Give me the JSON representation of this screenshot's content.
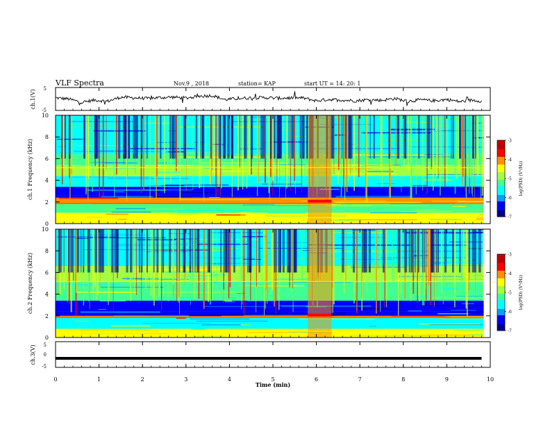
{
  "header": {
    "title": "VLF Spectra",
    "date": "Nov.9 , 2018",
    "station": "station= KAP",
    "start_ut": "start UT = 14: 20: 1"
  },
  "colorbar": {
    "label": "log(PSD) (V²/Hz)",
    "ticks": [
      "-3",
      "-4",
      "-5",
      "-6",
      "-7"
    ],
    "colors": [
      "#000090",
      "#0000ff",
      "#00a0ff",
      "#00ffff",
      "#40ff90",
      "#a0ff40",
      "#ffff00",
      "#ff9000",
      "#ff0000",
      "#c00000",
      "#ffffff"
    ]
  },
  "chart_data": [
    {
      "type": "line",
      "name": "ch.1 waveform",
      "ylabel": "ch.1(V)",
      "ylim": [
        -5,
        5
      ],
      "yticks": [
        "5",
        "-5"
      ],
      "xlim": [
        0,
        10
      ],
      "x": [
        0.0,
        0.3,
        0.6,
        0.9,
        1.2,
        1.5,
        1.8,
        2.1,
        2.4,
        2.7,
        3.0,
        3.3,
        3.6,
        3.9,
        4.2,
        4.5,
        4.8,
        5.1,
        5.4,
        5.7,
        6.0,
        6.3,
        6.6,
        6.9,
        7.2,
        7.5,
        7.8,
        8.1,
        8.4,
        8.7,
        9.0,
        9.3,
        9.6,
        9.8
      ],
      "y": [
        0.5,
        0.0,
        -1.5,
        -0.5,
        -1.0,
        0.8,
        0.5,
        0.2,
        0.6,
        0.8,
        0.4,
        1.2,
        1.5,
        -0.3,
        0.2,
        0.5,
        0.6,
        0.3,
        0.5,
        0.4,
        -0.8,
        -0.2,
        -0.5,
        -0.8,
        -0.3,
        -0.6,
        0.2,
        -1.0,
        -0.4,
        -0.8,
        -0.2,
        -1.2,
        -0.5,
        -0.9
      ]
    },
    {
      "type": "heatmap",
      "name": "ch.1 spectrogram",
      "ylabel": "ch.1 Frequency (kHz)",
      "xlim": [
        0,
        10
      ],
      "ylim": [
        0,
        10
      ],
      "yticks": [
        "0",
        "2",
        "4",
        "6",
        "8",
        "10"
      ],
      "bands_khz": [
        {
          "from": 0,
          "to": 1,
          "level": -4.5
        },
        {
          "from": 1,
          "to": 1.8,
          "level": -5.2
        },
        {
          "from": 1.8,
          "to": 2.4,
          "level": -4.2
        },
        {
          "from": 2.4,
          "to": 2.6,
          "level": -6.2
        },
        {
          "from": 2.6,
          "to": 3.4,
          "level": -6.6
        },
        {
          "from": 3.4,
          "to": 4.4,
          "level": -5.6
        },
        {
          "from": 4.4,
          "to": 5.4,
          "level": -5.0
        },
        {
          "from": 5.4,
          "to": 6.4,
          "level": -5.3
        },
        {
          "from": 6.4,
          "to": 10,
          "level": -5.6
        }
      ],
      "event": {
        "t_from": 5.8,
        "t_to": 6.35,
        "level": -4.0
      }
    },
    {
      "type": "heatmap",
      "name": "ch.2 spectrogram",
      "ylabel": "ch.2 Frequency (kHz)",
      "xlim": [
        0,
        10
      ],
      "ylim": [
        0,
        10
      ],
      "yticks": [
        "0",
        "2",
        "4",
        "6",
        "8",
        "10"
      ],
      "bands_khz": [
        {
          "from": 0,
          "to": 0.8,
          "level": -4.6
        },
        {
          "from": 0.8,
          "to": 1.8,
          "level": -5.4
        },
        {
          "from": 1.8,
          "to": 2.0,
          "level": -4.2
        },
        {
          "from": 2.0,
          "to": 2.4,
          "level": -6.4
        },
        {
          "from": 2.4,
          "to": 3.4,
          "level": -6.6
        },
        {
          "from": 3.4,
          "to": 5.2,
          "level": -5.3
        },
        {
          "from": 5.2,
          "to": 6.6,
          "level": -5.0
        },
        {
          "from": 6.6,
          "to": 10,
          "level": -5.7
        }
      ],
      "event": {
        "t_from": 5.8,
        "t_to": 6.35,
        "level": -4.0
      }
    },
    {
      "type": "line",
      "name": "ch.3 waveform",
      "ylabel": "ch.3(V)",
      "ylim": [
        -5,
        5
      ],
      "yticks": [
        "5",
        "0",
        "-5"
      ],
      "xlim": [
        0,
        10
      ],
      "x": [
        0,
        9.8
      ],
      "y": [
        -1.5,
        -1.5
      ]
    }
  ],
  "xaxis": {
    "label": "Time (min)",
    "ticks": [
      "0",
      "1",
      "2",
      "3",
      "4",
      "5",
      "6",
      "7",
      "8",
      "9",
      "10"
    ]
  }
}
